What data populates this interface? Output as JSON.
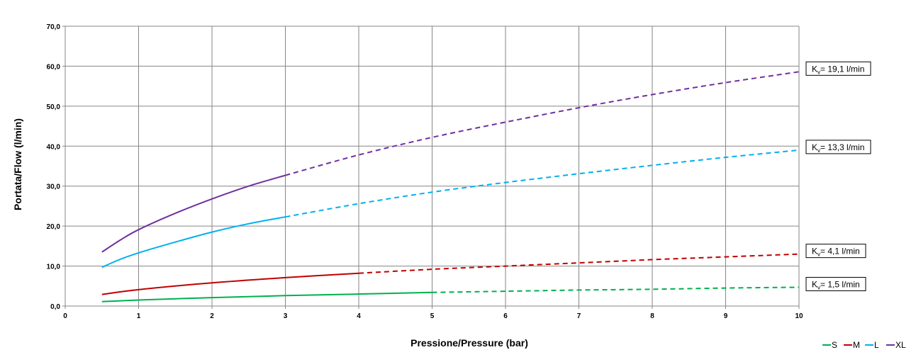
{
  "chart_data": {
    "type": "line",
    "title": "",
    "xlabel": "Pressione/Pressure (bar)",
    "ylabel": "Portata/Flow (l/min)",
    "xlim": [
      0,
      10
    ],
    "ylim": [
      0,
      70
    ],
    "x_ticks": [
      "0",
      "1",
      "2",
      "3",
      "4",
      "5",
      "6",
      "7",
      "8",
      "9",
      "10"
    ],
    "y_ticks": [
      "0,0",
      "10,0",
      "20,0",
      "30,0",
      "40,0",
      "50,0",
      "60,0",
      "70,0"
    ],
    "grid": true,
    "legend_position": "bottom-right",
    "series": [
      {
        "name": "S",
        "color": "#00b050",
        "kv": "= 1,5 l/min",
        "solid": [
          [
            0.5,
            1.1
          ],
          [
            1,
            1.5
          ],
          [
            2,
            2.1
          ],
          [
            3,
            2.6
          ],
          [
            4,
            3.0
          ],
          [
            5,
            3.4
          ]
        ],
        "dashed": [
          [
            5,
            3.4
          ],
          [
            6,
            3.7
          ],
          [
            7,
            4.0
          ],
          [
            8,
            4.2
          ],
          [
            9,
            4.5
          ],
          [
            10,
            4.7
          ]
        ]
      },
      {
        "name": "M",
        "color": "#c00000",
        "kv": "= 4,1 l/min",
        "solid": [
          [
            0.5,
            2.9
          ],
          [
            1,
            4.1
          ],
          [
            2,
            5.8
          ],
          [
            3,
            7.1
          ],
          [
            4,
            8.2
          ]
        ],
        "dashed": [
          [
            4,
            8.2
          ],
          [
            5,
            9.2
          ],
          [
            6,
            10.0
          ],
          [
            7,
            10.8
          ],
          [
            8,
            11.6
          ],
          [
            9,
            12.3
          ],
          [
            10,
            13.0
          ]
        ]
      },
      {
        "name": "L",
        "color": "#00b0f0",
        "kv": "= 13,3 l/min",
        "solid": [
          [
            0.5,
            9.7
          ],
          [
            0.75,
            11.7
          ],
          [
            1,
            13.3
          ],
          [
            1.5,
            16.0
          ],
          [
            2,
            18.5
          ],
          [
            2.5,
            20.6
          ],
          [
            3,
            22.3
          ]
        ],
        "dashed": [
          [
            3,
            22.3
          ],
          [
            4,
            25.6
          ],
          [
            5,
            28.5
          ],
          [
            6,
            30.9
          ],
          [
            7,
            33.1
          ],
          [
            8,
            35.2
          ],
          [
            9,
            37.2
          ],
          [
            10,
            39.0
          ]
        ]
      },
      {
        "name": "XL",
        "color": "#7030a0",
        "kv": "= 19,1 l/min",
        "solid": [
          [
            0.5,
            13.5
          ],
          [
            0.75,
            16.5
          ],
          [
            1,
            19.1
          ],
          [
            1.5,
            23.2
          ],
          [
            2,
            26.8
          ],
          [
            2.5,
            30.0
          ],
          [
            3,
            32.7
          ]
        ],
        "dashed": [
          [
            3,
            32.7
          ],
          [
            4,
            37.8
          ],
          [
            5,
            42.2
          ],
          [
            6,
            46.0
          ],
          [
            7,
            49.6
          ],
          [
            8,
            52.9
          ],
          [
            9,
            55.9
          ],
          [
            10,
            58.6
          ]
        ]
      }
    ]
  }
}
